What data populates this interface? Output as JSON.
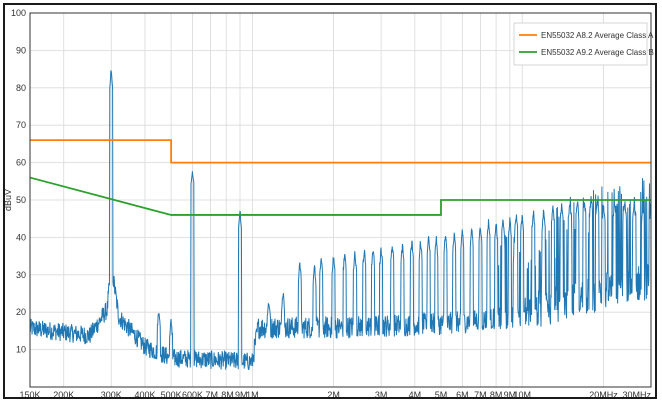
{
  "chart_data": {
    "type": "line",
    "title": "",
    "xlabel": "",
    "ylabel": "dBuV",
    "x_scale": "log",
    "x_range_hz": [
      150000,
      30000000
    ],
    "ylim": [
      0,
      100
    ],
    "y_ticks": [
      10,
      20,
      30,
      40,
      50,
      60,
      70,
      80,
      90,
      100
    ],
    "x_ticks": [
      {
        "hz": 150000,
        "label": "150K"
      },
      {
        "hz": 200000,
        "label": "200K"
      },
      {
        "hz": 300000,
        "label": "300K"
      },
      {
        "hz": 400000,
        "label": "400K"
      },
      {
        "hz": 500000,
        "label": "500K"
      },
      {
        "hz": 600000,
        "label": "600K"
      },
      {
        "hz": 700000,
        "label": ".7M"
      },
      {
        "hz": 800000,
        "label": ".8M"
      },
      {
        "hz": 900000,
        "label": ".9M"
      },
      {
        "hz": 1000000,
        "label": "1M"
      },
      {
        "hz": 2000000,
        "label": "2M"
      },
      {
        "hz": 3000000,
        "label": "3M"
      },
      {
        "hz": 4000000,
        "label": "4M"
      },
      {
        "hz": 5000000,
        "label": "5M"
      },
      {
        "hz": 6000000,
        "label": "6M"
      },
      {
        "hz": 7000000,
        "label": "7M"
      },
      {
        "hz": 8000000,
        "label": "8M"
      },
      {
        "hz": 9000000,
        "label": "9M"
      },
      {
        "hz": 10000000,
        "label": "10M"
      },
      {
        "hz": 20000000,
        "label": "20MHz"
      },
      {
        "hz": 30000000,
        "label": "30MHz"
      }
    ],
    "grid": true,
    "legend_position": "top-right",
    "series": [
      {
        "name": "EN55032 A8.2 Average Class A",
        "color": "#ff7f0e",
        "points": [
          [
            150000,
            66
          ],
          [
            500000,
            66
          ],
          [
            500000,
            60
          ],
          [
            30000000,
            60
          ]
        ]
      },
      {
        "name": "EN55032 A9.2 Average Class B",
        "color": "#2ca02c",
        "points": [
          [
            150000,
            56
          ],
          [
            500000,
            46
          ],
          [
            5000000,
            46
          ],
          [
            5000000,
            50
          ],
          [
            30000000,
            50
          ]
        ]
      },
      {
        "color": "#1f77b4",
        "floor_points": [
          [
            150000,
            15
          ],
          [
            250000,
            13
          ],
          [
            290000,
            20
          ],
          [
            300000,
            32
          ],
          [
            320000,
            18
          ],
          [
            400000,
            10
          ],
          [
            500000,
            7
          ],
          [
            1000000,
            6
          ],
          [
            1050000,
            15
          ],
          [
            2000000,
            15
          ],
          [
            5000000,
            16
          ],
          [
            10000000,
            18
          ],
          [
            20000000,
            24
          ],
          [
            30000000,
            27
          ]
        ],
        "peaks": [
          [
            300000,
            86
          ],
          [
            450000,
            21
          ],
          [
            500000,
            19
          ],
          [
            600000,
            59
          ],
          [
            900000,
            48
          ],
          [
            1150000,
            24
          ],
          [
            1300000,
            26
          ],
          [
            1500000,
            34
          ],
          [
            1700000,
            33
          ],
          [
            1800000,
            36
          ],
          [
            2000000,
            36
          ],
          [
            2200000,
            37
          ],
          [
            2400000,
            37
          ],
          [
            2600000,
            38
          ],
          [
            2800000,
            38
          ],
          [
            3000000,
            38
          ],
          [
            3300000,
            39
          ],
          [
            3600000,
            39
          ],
          [
            3900000,
            40
          ],
          [
            4200000,
            40
          ],
          [
            4500000,
            41
          ],
          [
            4800000,
            41
          ],
          [
            5200000,
            42
          ],
          [
            5600000,
            42
          ],
          [
            6000000,
            43
          ],
          [
            6500000,
            43
          ],
          [
            7000000,
            44
          ],
          [
            7500000,
            45
          ],
          [
            8000000,
            45
          ],
          [
            8500000,
            46
          ],
          [
            9000000,
            46
          ],
          [
            9500000,
            47
          ],
          [
            10000000,
            47
          ],
          [
            11000000,
            48
          ],
          [
            12000000,
            48
          ],
          [
            13000000,
            49
          ],
          [
            14000000,
            50
          ],
          [
            15000000,
            50
          ],
          [
            16000000,
            51
          ],
          [
            17000000,
            51
          ],
          [
            18000000,
            52
          ],
          [
            19000000,
            51
          ],
          [
            20000000,
            50
          ],
          [
            22000000,
            51
          ],
          [
            24000000,
            51
          ],
          [
            26000000,
            50
          ],
          [
            28000000,
            49
          ],
          [
            30000000,
            50
          ]
        ]
      }
    ]
  }
}
